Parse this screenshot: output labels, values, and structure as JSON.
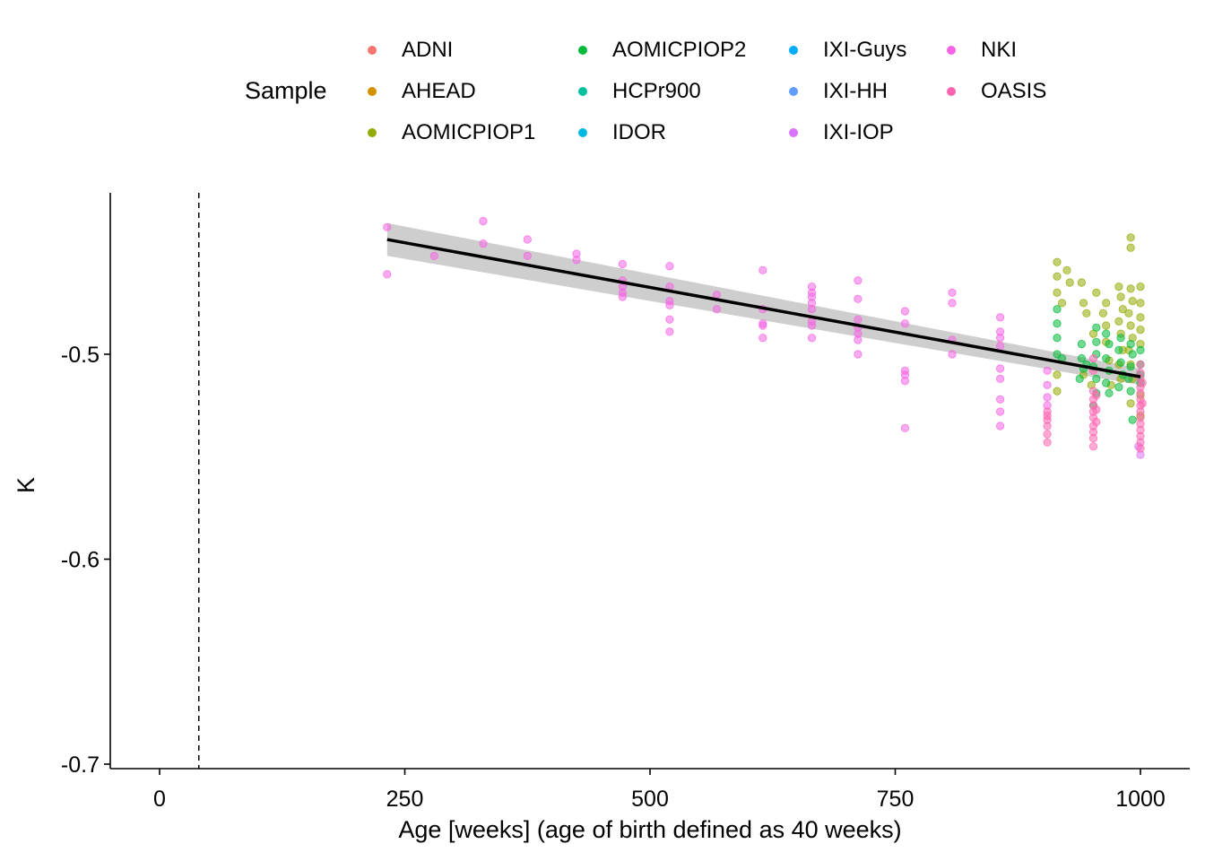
{
  "chart_data": {
    "type": "scatter",
    "title": "",
    "xlabel": "Age [weeks] (age of birth defined as 40 weeks)",
    "ylabel": "K",
    "xlim": [
      -50,
      1050
    ],
    "ylim": [
      -0.705,
      -0.425
    ],
    "x_ticks": [
      0,
      250,
      500,
      750,
      1000
    ],
    "x_tick_labels": [
      "0",
      "250",
      "500",
      "750",
      "1000"
    ],
    "y_ticks": [
      -0.7,
      -0.6,
      -0.5
    ],
    "y_tick_labels": [
      "-0.7",
      "-0.6",
      "-0.5"
    ],
    "reference_line": {
      "x": 40,
      "style": "dashed",
      "color": "#000000"
    },
    "grid": false,
    "legend_title": "Sample",
    "legend_position": "top",
    "trend": {
      "type": "linear fit with confidence band",
      "x": [
        232,
        1000
      ],
      "y": [
        -0.444,
        -0.511
      ],
      "ci_low": [
        -0.452,
        -0.515
      ],
      "ci_high": [
        -0.436,
        -0.507
      ],
      "color": "#000000",
      "band_color": "#bdbdbd"
    },
    "series": [
      {
        "name": "ADNI",
        "color": "#F8766D",
        "points": []
      },
      {
        "name": "AHEAD",
        "color": "#D39200",
        "points": []
      },
      {
        "name": "AOMICPIOP1",
        "color": "#93AA00",
        "points": [
          [
            915,
            -0.455
          ],
          [
            915,
            -0.462
          ],
          [
            915,
            -0.47
          ],
          [
            920,
            -0.475
          ],
          [
            925,
            -0.459
          ],
          [
            928,
            -0.465
          ],
          [
            915,
            -0.51
          ],
          [
            915,
            -0.518
          ],
          [
            940,
            -0.465
          ],
          [
            942,
            -0.475
          ],
          [
            945,
            -0.48
          ],
          [
            942,
            -0.51
          ],
          [
            955,
            -0.47
          ],
          [
            952,
            -0.49
          ],
          [
            950,
            -0.515
          ],
          [
            965,
            -0.475
          ],
          [
            962,
            -0.48
          ],
          [
            965,
            -0.486
          ],
          [
            965,
            -0.494
          ],
          [
            968,
            -0.503
          ],
          [
            970,
            -0.515
          ],
          [
            978,
            -0.467
          ],
          [
            980,
            -0.472
          ],
          [
            982,
            -0.478
          ],
          [
            978,
            -0.484
          ],
          [
            980,
            -0.49
          ],
          [
            982,
            -0.498
          ],
          [
            978,
            -0.505
          ],
          [
            980,
            -0.512
          ],
          [
            990,
            -0.443
          ],
          [
            990,
            -0.448
          ],
          [
            990,
            -0.468
          ],
          [
            992,
            -0.474
          ],
          [
            988,
            -0.48
          ],
          [
            990,
            -0.486
          ],
          [
            992,
            -0.492
          ],
          [
            988,
            -0.498
          ],
          [
            990,
            -0.505
          ],
          [
            992,
            -0.512
          ],
          [
            1000,
            -0.467
          ],
          [
            1000,
            -0.475
          ],
          [
            1000,
            -0.482
          ],
          [
            1000,
            -0.488
          ],
          [
            1000,
            -0.495
          ],
          [
            1000,
            -0.52
          ],
          [
            1000,
            -0.53
          ],
          [
            990,
            -0.524
          ]
        ]
      },
      {
        "name": "AOMICPIOP2",
        "color": "#00BA38",
        "points": [
          [
            915,
            -0.478
          ],
          [
            915,
            -0.485
          ],
          [
            915,
            -0.492
          ],
          [
            915,
            -0.5
          ],
          [
            920,
            -0.502
          ],
          [
            940,
            -0.495
          ],
          [
            940,
            -0.502
          ],
          [
            942,
            -0.507
          ],
          [
            938,
            -0.512
          ],
          [
            945,
            -0.505
          ],
          [
            955,
            -0.487
          ],
          [
            955,
            -0.494
          ],
          [
            955,
            -0.5
          ],
          [
            952,
            -0.506
          ],
          [
            955,
            -0.512
          ],
          [
            955,
            -0.519
          ],
          [
            952,
            -0.525
          ],
          [
            965,
            -0.49
          ],
          [
            968,
            -0.495
          ],
          [
            965,
            -0.502
          ],
          [
            968,
            -0.508
          ],
          [
            965,
            -0.514
          ],
          [
            968,
            -0.519
          ],
          [
            980,
            -0.492
          ],
          [
            978,
            -0.498
          ],
          [
            980,
            -0.504
          ],
          [
            982,
            -0.51
          ],
          [
            978,
            -0.516
          ],
          [
            990,
            -0.495
          ],
          [
            992,
            -0.5
          ],
          [
            990,
            -0.506
          ],
          [
            988,
            -0.512
          ],
          [
            990,
            -0.518
          ],
          [
            992,
            -0.532
          ],
          [
            1000,
            -0.498
          ],
          [
            1000,
            -0.505
          ],
          [
            1000,
            -0.51
          ],
          [
            1000,
            -0.514
          ]
        ]
      },
      {
        "name": "HCPr900",
        "color": "#00C19F",
        "points": []
      },
      {
        "name": "IDOR",
        "color": "#00B9E3",
        "points": []
      },
      {
        "name": "IXI-Guys",
        "color": "#00ADFA",
        "points": []
      },
      {
        "name": "IXI-HH",
        "color": "#619CFF",
        "points": []
      },
      {
        "name": "IXI-IOP",
        "color": "#DB72FB",
        "points": [
          [
            1000,
            -0.549
          ],
          [
            998,
            -0.545
          ]
        ]
      },
      {
        "name": "NKI",
        "color": "#F564E3",
        "points": [
          [
            232,
            -0.438
          ],
          [
            232,
            -0.461
          ],
          [
            280,
            -0.452
          ],
          [
            330,
            -0.435
          ],
          [
            330,
            -0.446
          ],
          [
            375,
            -0.444
          ],
          [
            375,
            -0.452
          ],
          [
            425,
            -0.451
          ],
          [
            425,
            -0.454
          ],
          [
            472,
            -0.456
          ],
          [
            472,
            -0.464
          ],
          [
            472,
            -0.467
          ],
          [
            472,
            -0.47
          ],
          [
            472,
            -0.472
          ],
          [
            520,
            -0.457
          ],
          [
            520,
            -0.467
          ],
          [
            520,
            -0.474
          ],
          [
            520,
            -0.476
          ],
          [
            520,
            -0.483
          ],
          [
            520,
            -0.489
          ],
          [
            568,
            -0.471
          ],
          [
            568,
            -0.478
          ],
          [
            615,
            -0.459
          ],
          [
            615,
            -0.478
          ],
          [
            615,
            -0.485
          ],
          [
            615,
            -0.486
          ],
          [
            615,
            -0.492
          ],
          [
            665,
            -0.467
          ],
          [
            665,
            -0.47
          ],
          [
            665,
            -0.472
          ],
          [
            665,
            -0.475
          ],
          [
            665,
            -0.478
          ],
          [
            665,
            -0.484
          ],
          [
            665,
            -0.486
          ],
          [
            665,
            -0.492
          ],
          [
            712,
            -0.464
          ],
          [
            712,
            -0.473
          ],
          [
            712,
            -0.483
          ],
          [
            712,
            -0.487
          ],
          [
            712,
            -0.49
          ],
          [
            712,
            -0.493
          ],
          [
            712,
            -0.5
          ],
          [
            760,
            -0.479
          ],
          [
            760,
            -0.485
          ],
          [
            760,
            -0.508
          ],
          [
            760,
            -0.51
          ],
          [
            760,
            -0.513
          ],
          [
            760,
            -0.536
          ],
          [
            808,
            -0.47
          ],
          [
            808,
            -0.475
          ],
          [
            808,
            -0.493
          ],
          [
            808,
            -0.5
          ],
          [
            857,
            -0.482
          ],
          [
            857,
            -0.489
          ],
          [
            857,
            -0.492
          ],
          [
            857,
            -0.496
          ],
          [
            857,
            -0.507
          ],
          [
            857,
            -0.512
          ],
          [
            857,
            -0.522
          ],
          [
            857,
            -0.528
          ],
          [
            857,
            -0.535
          ],
          [
            905,
            -0.508
          ],
          [
            905,
            -0.515
          ],
          [
            905,
            -0.521
          ],
          [
            905,
            -0.525
          ]
        ]
      },
      {
        "name": "OASIS",
        "color": "#FF64B0",
        "points": [
          [
            905,
            -0.528
          ],
          [
            905,
            -0.532
          ],
          [
            905,
            -0.535
          ],
          [
            905,
            -0.539
          ],
          [
            905,
            -0.543
          ],
          [
            905,
            -0.53
          ],
          [
            952,
            -0.502
          ],
          [
            952,
            -0.508
          ],
          [
            952,
            -0.518
          ],
          [
            952,
            -0.522
          ],
          [
            952,
            -0.525
          ],
          [
            952,
            -0.528
          ],
          [
            952,
            -0.531
          ],
          [
            952,
            -0.535
          ],
          [
            952,
            -0.538
          ],
          [
            952,
            -0.541
          ],
          [
            952,
            -0.545
          ],
          [
            955,
            -0.52
          ],
          [
            955,
            -0.527
          ],
          [
            955,
            -0.533
          ],
          [
            1000,
            -0.505
          ],
          [
            1000,
            -0.509
          ],
          [
            1000,
            -0.512
          ],
          [
            1000,
            -0.516
          ],
          [
            1000,
            -0.519
          ],
          [
            1000,
            -0.522
          ],
          [
            1000,
            -0.525
          ],
          [
            1000,
            -0.528
          ],
          [
            1000,
            -0.531
          ],
          [
            1000,
            -0.534
          ],
          [
            1000,
            -0.537
          ],
          [
            1000,
            -0.54
          ],
          [
            1000,
            -0.543
          ],
          [
            1000,
            -0.546
          ],
          [
            1002,
            -0.514
          ],
          [
            1002,
            -0.524
          ]
        ]
      }
    ]
  }
}
